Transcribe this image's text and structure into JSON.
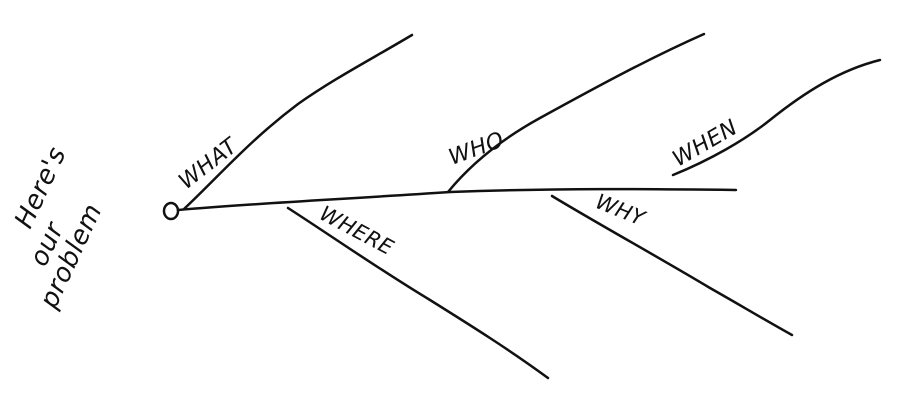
{
  "diagram": {
    "type": "fishbone",
    "problem_label": [
      "Here's",
      "our",
      "problem"
    ],
    "categories": {
      "what": "WHAT",
      "who": "WHO",
      "when": "WHEN",
      "where": "WHERE",
      "why": "WHY"
    }
  },
  "style": {
    "ink_color": "#111111",
    "background": "#ffffff"
  }
}
